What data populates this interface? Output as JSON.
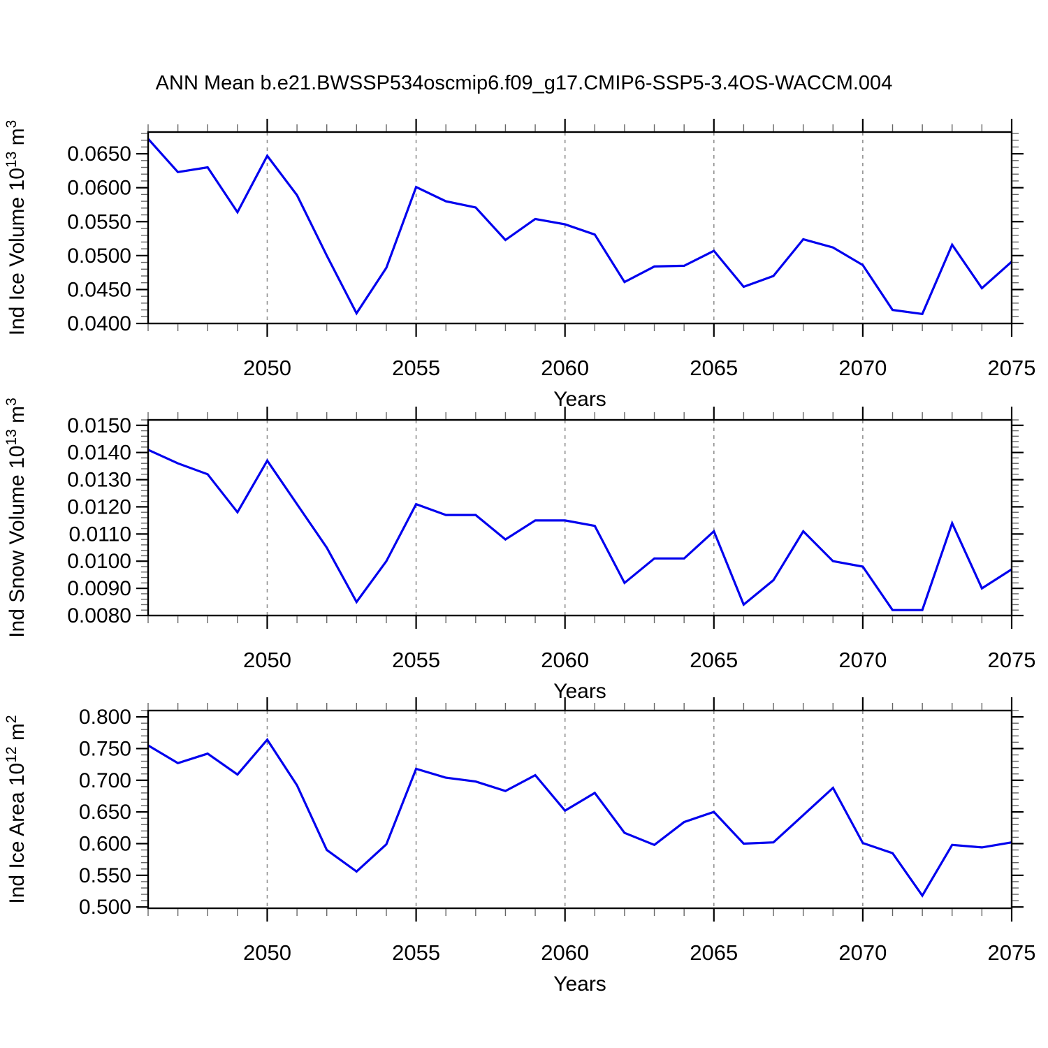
{
  "title": "ANN Mean b.e21.BWSSP534oscmip6.f09_g17.CMIP6-SSP5-3.4OS-WACCM.004",
  "colors": {
    "line": "#0000ee",
    "grid": "#909090",
    "axis": "#000000",
    "minor_tick": "#666666",
    "major_tick": "#000000"
  },
  "x_axis": {
    "label": "Years",
    "range": [
      2046,
      2075
    ],
    "major_ticks": [
      2050,
      2055,
      2060,
      2065,
      2070,
      2075
    ],
    "major_tick_labels": [
      "2050",
      "2055",
      "2060",
      "2065",
      "2070",
      "2075"
    ],
    "grid_years": [
      2050,
      2055,
      2060,
      2065,
      2070
    ],
    "minor_step": 1
  },
  "chart_data": [
    {
      "id": "ice-volume",
      "type": "line",
      "title": "",
      "xlabel": "Years",
      "ylabel": "Ind Ice Volume 10^13 m^3",
      "ylabel_segments": [
        {
          "t": "Ind Ice Volume 10"
        },
        {
          "t": "13",
          "sup": true
        },
        {
          "t": " m"
        },
        {
          "t": "3",
          "sup": true
        }
      ],
      "x": [
        2046,
        2047,
        2048,
        2049,
        2050,
        2051,
        2052,
        2053,
        2054,
        2055,
        2056,
        2057,
        2058,
        2059,
        2060,
        2061,
        2062,
        2063,
        2064,
        2065,
        2066,
        2067,
        2068,
        2069,
        2070,
        2071,
        2072,
        2073,
        2074,
        2075
      ],
      "values": [
        0.0672,
        0.0623,
        0.063,
        0.0564,
        0.0647,
        0.0589,
        0.05,
        0.0415,
        0.0482,
        0.0601,
        0.058,
        0.0571,
        0.0523,
        0.0554,
        0.0546,
        0.0531,
        0.0461,
        0.0484,
        0.0485,
        0.0507,
        0.0454,
        0.047,
        0.0524,
        0.0512,
        0.0486,
        0.042,
        0.0414,
        0.0516,
        0.0452,
        0.0491
      ],
      "ylim": [
        0.04,
        0.0682
      ],
      "ytick_values": [
        0.04,
        0.045,
        0.05,
        0.055,
        0.06,
        0.065
      ],
      "ytick_labels": [
        "0.0400",
        "0.0450",
        "0.0500",
        "0.0550",
        "0.0600",
        "0.0650"
      ],
      "y_minor_start": 0.04,
      "y_minor_step": 0.001,
      "grid": "vertical-dashed",
      "legend": null
    },
    {
      "id": "snow-volume",
      "type": "line",
      "title": "",
      "xlabel": "Years",
      "ylabel": "Ind Snow Volume 10^13 m^3",
      "ylabel_segments": [
        {
          "t": "Ind Snow Volume 10"
        },
        {
          "t": "13",
          "sup": true
        },
        {
          "t": " m"
        },
        {
          "t": "3",
          "sup": true
        }
      ],
      "x": [
        2046,
        2047,
        2048,
        2049,
        2050,
        2051,
        2052,
        2053,
        2054,
        2055,
        2056,
        2057,
        2058,
        2059,
        2060,
        2061,
        2062,
        2063,
        2064,
        2065,
        2066,
        2067,
        2068,
        2069,
        2070,
        2071,
        2072,
        2073,
        2074,
        2075
      ],
      "values": [
        0.0141,
        0.0136,
        0.0132,
        0.0118,
        0.0137,
        0.0121,
        0.0105,
        0.0085,
        0.01,
        0.0121,
        0.0117,
        0.0117,
        0.0108,
        0.0115,
        0.0115,
        0.0113,
        0.0092,
        0.0101,
        0.0101,
        0.0111,
        0.0084,
        0.0093,
        0.0111,
        0.01,
        0.0098,
        0.0082,
        0.0082,
        0.0114,
        0.009,
        0.0097
      ],
      "ylim": [
        0.008,
        0.0152
      ],
      "ytick_values": [
        0.008,
        0.009,
        0.01,
        0.011,
        0.012,
        0.013,
        0.014,
        0.015
      ],
      "ytick_labels": [
        "0.0080",
        "0.0090",
        "0.0100",
        "0.0110",
        "0.0120",
        "0.0130",
        "0.0140",
        "0.0150"
      ],
      "y_minor_start": 0.008,
      "y_minor_step": 0.0002,
      "grid": "vertical-dashed",
      "legend": null
    },
    {
      "id": "ice-area",
      "type": "line",
      "title": "",
      "xlabel": "Years",
      "ylabel": "Ind Ice Area 10^12 m^2",
      "ylabel_segments": [
        {
          "t": "Ind Ice Area 10"
        },
        {
          "t": "12",
          "sup": true
        },
        {
          "t": " m"
        },
        {
          "t": "2",
          "sup": true
        }
      ],
      "x": [
        2046,
        2047,
        2048,
        2049,
        2050,
        2051,
        2052,
        2053,
        2054,
        2055,
        2056,
        2057,
        2058,
        2059,
        2060,
        2061,
        2062,
        2063,
        2064,
        2065,
        2066,
        2067,
        2068,
        2069,
        2070,
        2071,
        2072,
        2073,
        2074,
        2075
      ],
      "values": [
        0.755,
        0.727,
        0.742,
        0.709,
        0.764,
        0.692,
        0.59,
        0.556,
        0.599,
        0.718,
        0.704,
        0.698,
        0.683,
        0.708,
        0.652,
        0.68,
        0.617,
        0.598,
        0.634,
        0.65,
        0.6,
        0.602,
        0.645,
        0.688,
        0.601,
        0.585,
        0.518,
        0.598,
        0.594,
        0.602
      ],
      "ylim": [
        0.498,
        0.81
      ],
      "ytick_values": [
        0.5,
        0.55,
        0.6,
        0.65,
        0.7,
        0.75,
        0.8
      ],
      "ytick_labels": [
        "0.500",
        "0.550",
        "0.600",
        "0.650",
        "0.700",
        "0.750",
        "0.800"
      ],
      "y_minor_start": 0.5,
      "y_minor_step": 0.01,
      "grid": "vertical-dashed",
      "legend": null
    }
  ]
}
